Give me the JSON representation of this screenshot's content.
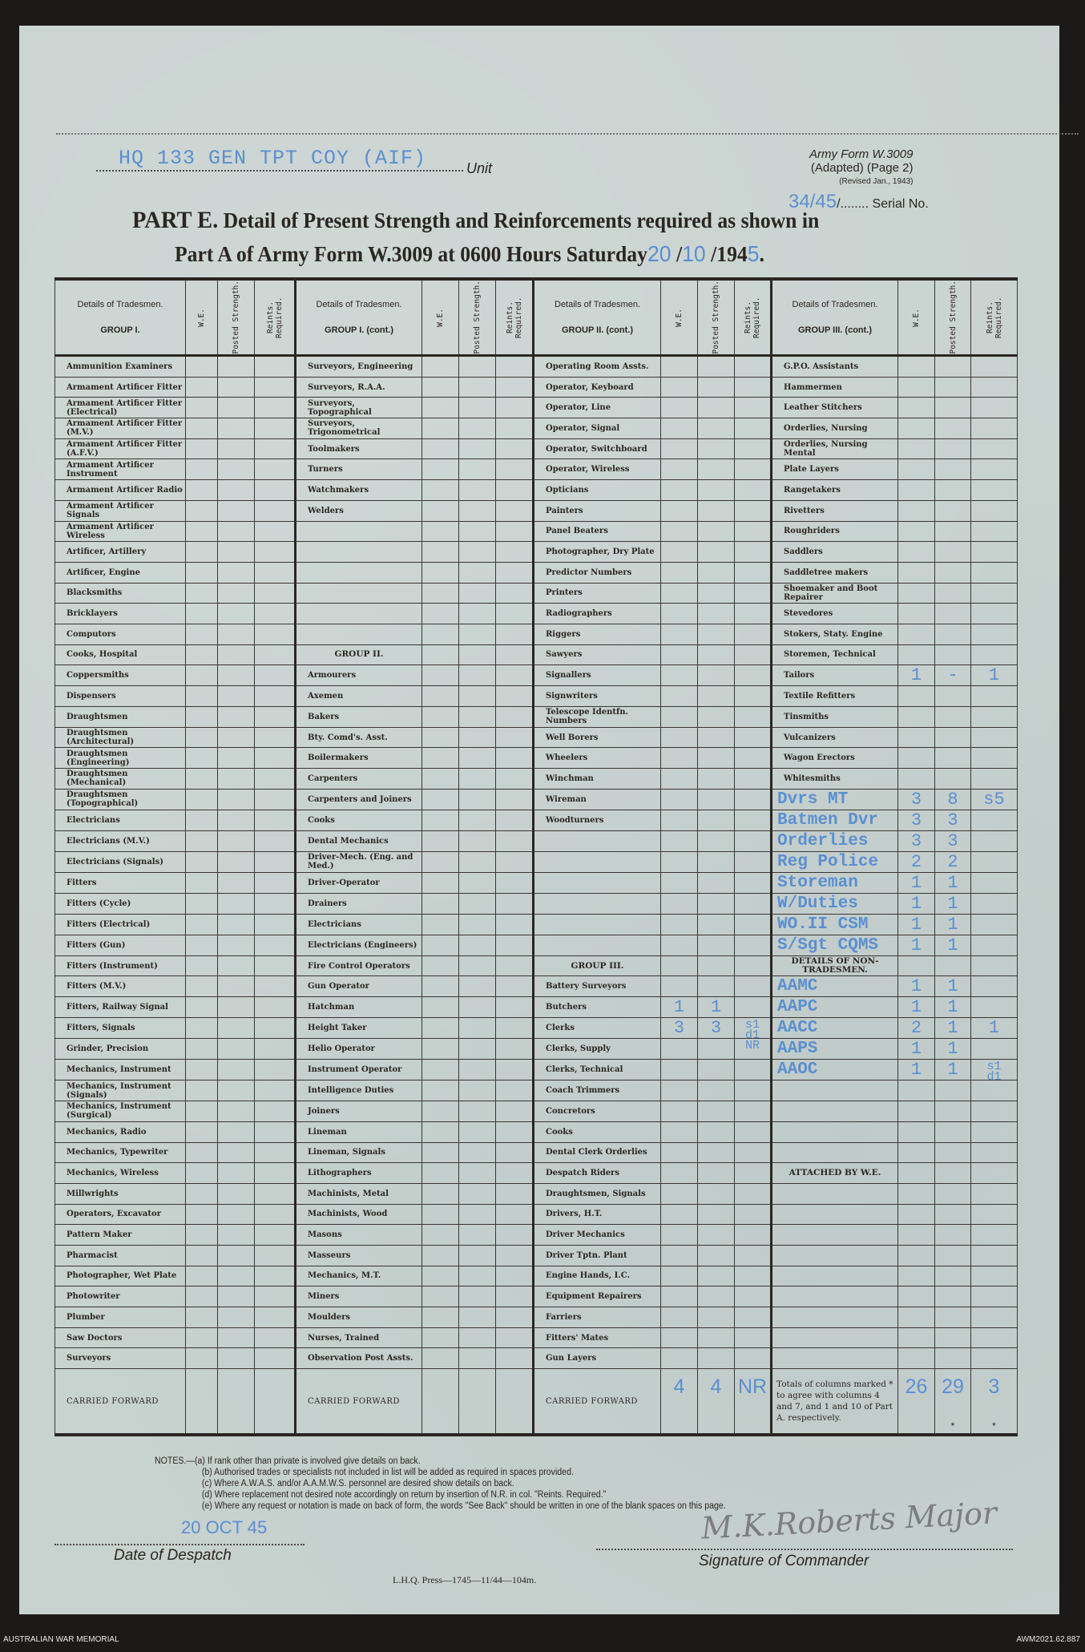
{
  "header": {
    "unit_value": "HQ 133 GEN TPT COY (AIF)",
    "unit_label": "Unit",
    "form_name": "Army Form W.3009",
    "form_adapted": "(Adapted) (Page 2)",
    "form_revised": "(Revised Jan., 1943)",
    "serial_value": "34/45",
    "serial_label": "Serial No.",
    "title_part": "PART E.",
    "title_line1": "Detail of Present Strength and Reinforcements required as shown in",
    "title_line2": "Part A of Army Form W.3009 at 0600 Hours Saturday",
    "date_day": "20",
    "date_month": "10",
    "date_year_prefix": "194",
    "date_year_digit": "5"
  },
  "table": {
    "column_headers": {
      "details": "Details of Tradesmen.",
      "we": "W.E.",
      "posted": "Posted Strength.",
      "reints": "Reints. Required."
    },
    "groups": [
      {
        "title": "GROUP I."
      },
      {
        "title": "GROUP I. (cont.)"
      },
      {
        "title": "GROUP II. (cont.)"
      },
      {
        "title": "GROUP III. (cont.)"
      }
    ],
    "columns": [
      [
        {
          "label": "Ammunition Examiners"
        },
        {
          "label": "Armament Artificer Fitter"
        },
        {
          "label": "Armament Artificer Fitter (Electrical)"
        },
        {
          "label": "Armament Artificer Fitter (M.V.)"
        },
        {
          "label": "Armament Artificer Fitter (A.F.V.)"
        },
        {
          "label": "Armament Artificer Instrument"
        },
        {
          "label": "Armament Artificer Radio"
        },
        {
          "label": "Armament Artificer Signals"
        },
        {
          "label": "Armament Artificer Wireless"
        },
        {
          "label": "Artificer, Artillery"
        },
        {
          "label": "Artificer, Engine"
        },
        {
          "label": "Blacksmiths"
        },
        {
          "label": "Bricklayers"
        },
        {
          "label": "Computors"
        },
        {
          "label": "Cooks, Hospital"
        },
        {
          "label": "Coppersmiths"
        },
        {
          "label": "Dispensers"
        },
        {
          "label": "Draughtsmen"
        },
        {
          "label": "Draughtsmen (Architectural)"
        },
        {
          "label": "Draughtsmen (Engineering)"
        },
        {
          "label": "Draughtsmen (Mechanical)"
        },
        {
          "label": "Draughtsmen (Topographical)"
        },
        {
          "label": "Electricians"
        },
        {
          "label": "Electricians (M.V.)"
        },
        {
          "label": "Electricians (Signals)"
        },
        {
          "label": "Fitters"
        },
        {
          "label": "Fitters (Cycle)"
        },
        {
          "label": "Fitters (Electrical)"
        },
        {
          "label": "Fitters (Gun)"
        },
        {
          "label": "Fitters (Instrument)"
        },
        {
          "label": "Fitters (M.V.)"
        },
        {
          "label": "Fitters, Railway Signal"
        },
        {
          "label": "Fitters, Signals"
        },
        {
          "label": "Grinder, Precision"
        },
        {
          "label": "Mechanics, Instrument"
        },
        {
          "label": "Mechanics, Instrument (Signals)"
        },
        {
          "label": "Mechanics, Instrument (Surgical)"
        },
        {
          "label": "Mechanics, Radio"
        },
        {
          "label": "Mechanics, Typewriter"
        },
        {
          "label": "Mechanics, Wireless"
        },
        {
          "label": "Millwrights"
        },
        {
          "label": "Operators, Excavator"
        },
        {
          "label": "Pattern Maker"
        },
        {
          "label": "Pharmacist"
        },
        {
          "label": "Photographer, Wet Plate"
        },
        {
          "label": "Photowriter"
        },
        {
          "label": "Plumber"
        },
        {
          "label": "Saw Doctors"
        },
        {
          "label": "Surveyors"
        }
      ],
      [
        {
          "label": "Surveyors, Engineering"
        },
        {
          "label": "Surveyors, R.A.A."
        },
        {
          "label": "Surveyors, Topographical"
        },
        {
          "label": "Surveyors, Trigonometrical"
        },
        {
          "label": "Toolmakers"
        },
        {
          "label": "Turners"
        },
        {
          "label": "Watchmakers"
        },
        {
          "label": "Welders"
        },
        {
          "label": ""
        },
        {
          "label": ""
        },
        {
          "label": ""
        },
        {
          "label": ""
        },
        {
          "label": ""
        },
        {
          "label": ""
        },
        {
          "label": "GROUP II.",
          "heading": true
        },
        {
          "label": "Armourers"
        },
        {
          "label": "Axemen"
        },
        {
          "label": "Bakers"
        },
        {
          "label": "Bty. Comd's. Asst."
        },
        {
          "label": "Boilermakers"
        },
        {
          "label": "Carpenters"
        },
        {
          "label": "Carpenters and Joiners"
        },
        {
          "label": "Cooks"
        },
        {
          "label": "Dental Mechanics"
        },
        {
          "label": "Driver-Mech. (Eng. and Med.)"
        },
        {
          "label": "Driver-Operator"
        },
        {
          "label": "Drainers"
        },
        {
          "label": "Electricians"
        },
        {
          "label": "Electricians (Engineers)"
        },
        {
          "label": "Fire Control Operators"
        },
        {
          "label": "Gun Operator"
        },
        {
          "label": "Hatchman"
        },
        {
          "label": "Height Taker"
        },
        {
          "label": "Helio Operator"
        },
        {
          "label": "Instrument Operator"
        },
        {
          "label": "Intelligence Duties"
        },
        {
          "label": "Joiners"
        },
        {
          "label": "Lineman"
        },
        {
          "label": "Lineman, Signals"
        },
        {
          "label": "Lithographers"
        },
        {
          "label": "Machinists, Metal"
        },
        {
          "label": "Machinists, Wood"
        },
        {
          "label": "Masons"
        },
        {
          "label": "Masseurs"
        },
        {
          "label": "Mechanics, M.T."
        },
        {
          "label": "Miners"
        },
        {
          "label": "Moulders"
        },
        {
          "label": "Nurses, Trained"
        },
        {
          "label": "Observation Post Assts."
        }
      ],
      [
        {
          "label": "Operating Room Assts."
        },
        {
          "label": "Operator, Keyboard"
        },
        {
          "label": "Operator, Line"
        },
        {
          "label": "Operator, Signal"
        },
        {
          "label": "Operator, Switchboard"
        },
        {
          "label": "Operator, Wireless"
        },
        {
          "label": "Opticians"
        },
        {
          "label": "Painters"
        },
        {
          "label": "Panel Beaters"
        },
        {
          "label": "Photographer, Dry Plate"
        },
        {
          "label": "Predictor Numbers"
        },
        {
          "label": "Printers"
        },
        {
          "label": "Radiographers"
        },
        {
          "label": "Riggers"
        },
        {
          "label": "Sawyers"
        },
        {
          "label": "Signallers"
        },
        {
          "label": "Signwriters"
        },
        {
          "label": "Telescope Identfn. Numbers"
        },
        {
          "label": "Well Borers"
        },
        {
          "label": "Wheelers"
        },
        {
          "label": "Winchman"
        },
        {
          "label": "Wireman"
        },
        {
          "label": "Woodturners"
        },
        {
          "label": ""
        },
        {
          "label": ""
        },
        {
          "label": ""
        },
        {
          "label": ""
        },
        {
          "label": ""
        },
        {
          "label": ""
        },
        {
          "label": "GROUP III.",
          "heading": true
        },
        {
          "label": "Battery Surveyors"
        },
        {
          "label": "Butchers",
          "we": "1",
          "posted": "1"
        },
        {
          "label": "Clerks",
          "we": "3",
          "posted": "3",
          "reints": "s1 d1 NR"
        },
        {
          "label": "Clerks, Supply"
        },
        {
          "label": "Clerks, Technical"
        },
        {
          "label": "Coach Trimmers"
        },
        {
          "label": "Concretors"
        },
        {
          "label": "Cooks"
        },
        {
          "label": "Dental Clerk Orderlies"
        },
        {
          "label": "Despatch Riders"
        },
        {
          "label": "Draughtsmen, Signals"
        },
        {
          "label": "Drivers, H.T."
        },
        {
          "label": "Driver Mechanics"
        },
        {
          "label": "Driver Tptn. Plant"
        },
        {
          "label": "Engine Hands, I.C."
        },
        {
          "label": "Equipment Repairers"
        },
        {
          "label": "Farriers"
        },
        {
          "label": "Fitters' Mates"
        },
        {
          "label": "Gun Layers"
        }
      ],
      [
        {
          "label": "G.P.O. Assistants"
        },
        {
          "label": "Hammermen"
        },
        {
          "label": "Leather Stitchers"
        },
        {
          "label": "Orderlies, Nursing"
        },
        {
          "label": "Orderlies, Nursing Mental"
        },
        {
          "label": "Plate Layers"
        },
        {
          "label": "Rangetakers"
        },
        {
          "label": "Rivetters"
        },
        {
          "label": "Roughriders"
        },
        {
          "label": "Saddlers"
        },
        {
          "label": "Saddletree makers"
        },
        {
          "label": "Shoemaker and Boot Repairer"
        },
        {
          "label": "Stevedores"
        },
        {
          "label": "Stokers, Staty. Engine"
        },
        {
          "label": "Storemen, Technical"
        },
        {
          "label": "Tailors",
          "we": "1",
          "posted": "-",
          "reints": "1"
        },
        {
          "label": "Textile Refitters"
        },
        {
          "label": "Tinsmiths"
        },
        {
          "label": "Vulcanizers"
        },
        {
          "label": "Wagon Erectors"
        },
        {
          "label": "Whitesmiths"
        },
        {
          "label": "Dvrs MT",
          "typed": true,
          "we": "3",
          "posted": "8",
          "reints": "s5"
        },
        {
          "label": "Batmen Dvr",
          "typed": true,
          "we": "3",
          "posted": "3"
        },
        {
          "label": "Orderlies",
          "typed": true,
          "we": "3",
          "posted": "3"
        },
        {
          "label": "Reg Police",
          "typed": true,
          "we": "2",
          "posted": "2"
        },
        {
          "label": "Storeman",
          "typed": true,
          "we": "1",
          "posted": "1"
        },
        {
          "label": "W/Duties",
          "typed": true,
          "we": "1",
          "posted": "1"
        },
        {
          "label": "WO.II CSM",
          "typed": true,
          "we": "1",
          "posted": "1"
        },
        {
          "label": "S/Sgt CQMS",
          "typed": true,
          "we": "1",
          "posted": "1"
        },
        {
          "label": "DETAILS OF NON-TRADESMEN.",
          "heading": true
        },
        {
          "label": "AAMC",
          "typed": true,
          "we": "1",
          "posted": "1"
        },
        {
          "label": "AAPC",
          "typed": true,
          "we": "1",
          "posted": "1"
        },
        {
          "label": "AACC",
          "typed": true,
          "we": "2",
          "posted": "1",
          "reints": "1"
        },
        {
          "label": "AAPS",
          "typed": true,
          "we": "1",
          "posted": "1"
        },
        {
          "label": "AAOC",
          "typed": true,
          "we": "1",
          "posted": "1",
          "reints": "s1 d1"
        },
        {
          "label": ""
        },
        {
          "label": ""
        },
        {
          "label": ""
        },
        {
          "label": ""
        },
        {
          "label": "ATTACHED BY W.E.",
          "heading": true
        },
        {
          "label": ""
        },
        {
          "label": ""
        },
        {
          "label": ""
        },
        {
          "label": ""
        },
        {
          "label": ""
        },
        {
          "label": ""
        },
        {
          "label": ""
        },
        {
          "label": ""
        },
        {
          "label": ""
        }
      ]
    ],
    "carried_forward": [
      {
        "label": "CARRIED FORWARD",
        "we": "",
        "posted": "",
        "reints": ""
      },
      {
        "label": "CARRIED FORWARD",
        "we": "",
        "posted": "",
        "reints": ""
      },
      {
        "label": "CARRIED FORWARD",
        "we": "4",
        "posted": "4",
        "reints": "NR"
      },
      {
        "label": "Totals of columns marked * to agree with columns 4 and 7, and 1 and 10 of Part A. respectively.",
        "we": "26",
        "posted": "29",
        "reints": "3",
        "asterisk": "*"
      }
    ]
  },
  "notes": [
    "NOTES.—(a) If rank other than private is involved give details on back.",
    "(b) Authorised trades or specialists not included in list will be added as required in spaces provided.",
    "(c) Where A.W.A.S. and/or A.A.M.W.S. personnel are desired show details on back.",
    "(d) Where replacement not desired note accordingly on return by insertion of N.R. in col. \"Reints. Required.\"",
    "(e) Where any request or notation is made on back of form, the words \"See Back\" should be written in one of the blank spaces on this page."
  ],
  "footer": {
    "despatch_date": "20 OCT 45",
    "despatch_label": "Date of Despatch",
    "signature": "M.K.Roberts Major",
    "signature_label": "Signature of Commander",
    "press_line": "L.H.Q. Press—1745—11/44—104m."
  },
  "caption": {
    "left": "AUSTRALIAN WAR MEMORIAL",
    "right": "AWM2021.62.887"
  },
  "colors": {
    "paper": "#c8d2cf",
    "typewriter_ink": "#5b8fd0",
    "print_ink": "#2a2622"
  }
}
